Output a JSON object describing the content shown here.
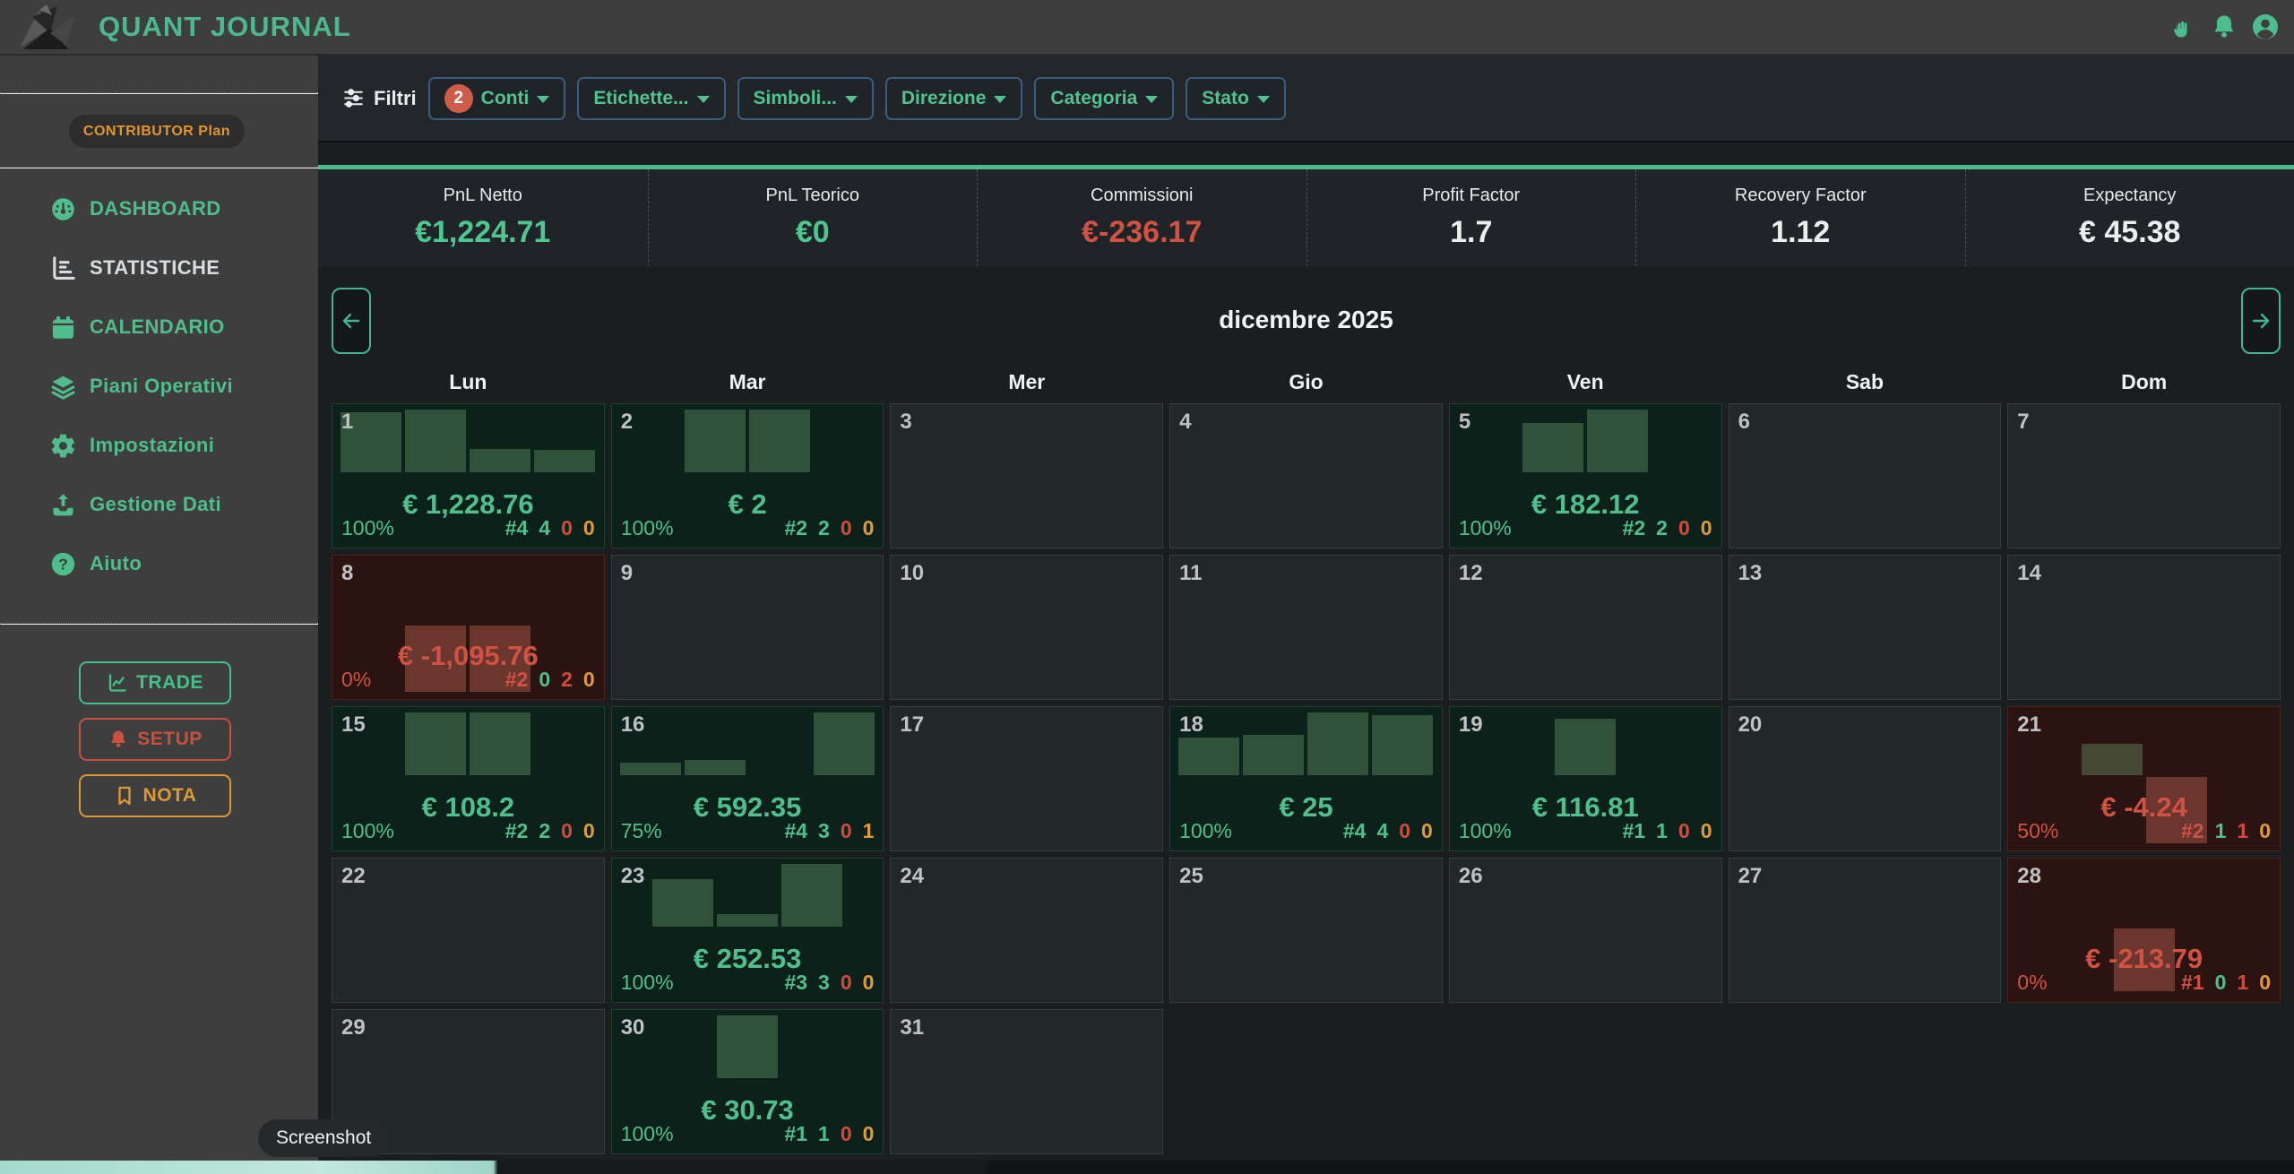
{
  "header": {
    "title": "QUANT JOURNAL",
    "icons": [
      {
        "name": "hand-gesture-icon"
      },
      {
        "name": "bell-icon"
      },
      {
        "name": "user-avatar-icon"
      }
    ]
  },
  "sidebar": {
    "plan_badge": "CONTRIBUTOR Plan",
    "items": [
      {
        "id": "dashboard",
        "label": "DASHBOARD",
        "icon": "gauge-icon",
        "tone": "green"
      },
      {
        "id": "statistiche",
        "label": "STATISTICHE",
        "icon": "bar-chart-icon",
        "tone": "white"
      },
      {
        "id": "calendario",
        "label": "CALENDARIO",
        "icon": "calendar-icon",
        "tone": "green"
      },
      {
        "id": "piani-operativi",
        "label": "Piani Operativi",
        "icon": "layers-icon",
        "tone": "green"
      },
      {
        "id": "impostazioni",
        "label": "Impostazioni",
        "icon": "gear-icon",
        "tone": "green"
      },
      {
        "id": "gestione-dati",
        "label": "Gestione Dati",
        "icon": "upload-icon",
        "tone": "green"
      },
      {
        "id": "aiuto",
        "label": "Aiuto",
        "icon": "question-icon",
        "tone": "green"
      }
    ],
    "actions": [
      {
        "id": "trade",
        "label": "TRADE",
        "icon": "chart-line-icon",
        "color": "#45c08b"
      },
      {
        "id": "setup",
        "label": "SETUP",
        "icon": "bell-icon",
        "color": "#c8503f"
      },
      {
        "id": "nota",
        "label": "NOTA",
        "icon": "bookmark-icon",
        "color": "#dd9933"
      }
    ]
  },
  "filters": {
    "label": "Filtri",
    "buttons": [
      {
        "id": "conti",
        "label": "Conti",
        "badge": "2"
      },
      {
        "id": "etichette",
        "label": "Etichette..."
      },
      {
        "id": "simboli",
        "label": "Simboli..."
      },
      {
        "id": "direzione",
        "label": "Direzione"
      },
      {
        "id": "categoria",
        "label": "Categoria"
      },
      {
        "id": "stato",
        "label": "Stato"
      }
    ]
  },
  "stats": [
    {
      "label": "PnL Netto",
      "value": "€1,224.71",
      "color": "green"
    },
    {
      "label": "PnL Teorico",
      "value": "€0",
      "color": "green"
    },
    {
      "label": "Commissioni",
      "value": "€-236.17",
      "color": "red"
    },
    {
      "label": "Profit Factor",
      "value": "1.7",
      "color": "white"
    },
    {
      "label": "Recovery Factor",
      "value": "1.12",
      "color": "white"
    },
    {
      "label": "Expectancy",
      "value": "€ 45.38",
      "color": "white"
    }
  ],
  "calendar": {
    "title": "dicembre 2025",
    "weekdays": [
      "Lun",
      "Mar",
      "Mer",
      "Gio",
      "Ven",
      "Sab",
      "Dom"
    ],
    "cells": [
      {
        "day": "1",
        "type": "profit",
        "pnl": "€ 1,228.76",
        "pct": "100%",
        "counts": [
          "#4",
          "4",
          "0",
          "0"
        ],
        "bars": [
          0.95,
          1.0,
          0.37,
          0.35
        ]
      },
      {
        "day": "2",
        "type": "profit",
        "pnl": "€ 2",
        "pct": "100%",
        "counts": [
          "#2",
          "2",
          "0",
          "0"
        ],
        "bars": [
          1.0,
          1.0
        ]
      },
      {
        "day": "3",
        "type": "none"
      },
      {
        "day": "4",
        "type": "none"
      },
      {
        "day": "5",
        "type": "profit",
        "pnl": "€ 182.12",
        "pct": "100%",
        "counts": [
          "#2",
          "2",
          "0",
          "0"
        ],
        "bars": [
          0.78,
          1.0
        ]
      },
      {
        "day": "6",
        "type": "none"
      },
      {
        "day": "7",
        "type": "none"
      },
      {
        "day": "8",
        "type": "loss",
        "pnl": "€ -1,095.76",
        "pct": "0%",
        "counts": [
          "#2",
          "0",
          "2",
          "0"
        ],
        "bars": [
          -1.0,
          -1.0
        ]
      },
      {
        "day": "9",
        "type": "none"
      },
      {
        "day": "10",
        "type": "none"
      },
      {
        "day": "11",
        "type": "none"
      },
      {
        "day": "12",
        "type": "none"
      },
      {
        "day": "13",
        "type": "none"
      },
      {
        "day": "14",
        "type": "none"
      },
      {
        "day": "15",
        "type": "profit",
        "pnl": "€ 108.2",
        "pct": "100%",
        "counts": [
          "#2",
          "2",
          "0",
          "0"
        ],
        "bars": [
          1.0,
          1.0
        ]
      },
      {
        "day": "16",
        "type": "profit",
        "pnl": "€ 592.35",
        "pct": "75%",
        "counts": [
          "#4",
          "3",
          "0",
          "1"
        ],
        "bars": [
          0.2,
          0.24,
          0,
          1.0
        ]
      },
      {
        "day": "17",
        "type": "none"
      },
      {
        "day": "18",
        "type": "profit",
        "pnl": "€ 25",
        "pct": "100%",
        "counts": [
          "#4",
          "4",
          "0",
          "0"
        ],
        "bars": [
          0.6,
          0.64,
          1.0,
          0.95
        ]
      },
      {
        "day": "19",
        "type": "profit",
        "pnl": "€ 116.81",
        "pct": "100%",
        "counts": [
          "#1",
          "1",
          "0",
          "0"
        ],
        "bars": [
          0.9
        ]
      },
      {
        "day": "20",
        "type": "none"
      },
      {
        "day": "21",
        "type": "loss",
        "pnl": "€ -4.24",
        "pct": "50%",
        "counts": [
          "#2",
          "1",
          "1",
          "0"
        ],
        "bars": [
          0.5,
          -1.0
        ]
      },
      {
        "day": "22",
        "type": "none"
      },
      {
        "day": "23",
        "type": "profit",
        "pnl": "€ 252.53",
        "pct": "100%",
        "counts": [
          "#3",
          "3",
          "0",
          "0"
        ],
        "bars": [
          0.75,
          0.2,
          1.0
        ]
      },
      {
        "day": "24",
        "type": "none"
      },
      {
        "day": "25",
        "type": "none"
      },
      {
        "day": "26",
        "type": "none"
      },
      {
        "day": "27",
        "type": "none"
      },
      {
        "day": "28",
        "type": "loss",
        "pnl": "€ -213.79",
        "pct": "0%",
        "counts": [
          "#1",
          "0",
          "1",
          "0"
        ],
        "bars": [
          -0.95
        ]
      },
      {
        "day": "29",
        "type": "none"
      },
      {
        "day": "30",
        "type": "profit",
        "pnl": "€ 30.73",
        "pct": "100%",
        "counts": [
          "#1",
          "1",
          "0",
          "0"
        ],
        "bars": [
          1.0
        ]
      },
      {
        "day": "31",
        "type": "none"
      }
    ]
  },
  "tooltip": "Screenshot",
  "colors": {
    "accent": "#4fbd8c",
    "negative": "#cf5243",
    "warning": "#e09a39"
  }
}
